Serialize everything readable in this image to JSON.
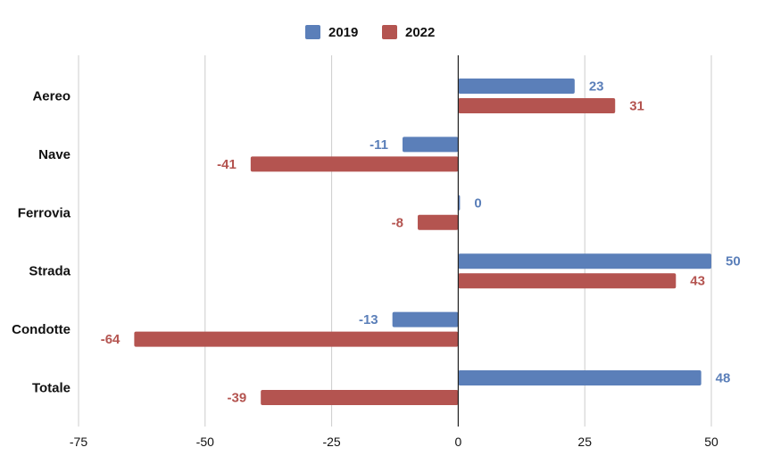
{
  "chart_data": {
    "type": "bar",
    "orientation": "horizontal",
    "categories": [
      "Aereo",
      "Nave",
      "Ferrovia",
      "Strada",
      "Condotte",
      "Totale"
    ],
    "series": [
      {
        "name": "2019",
        "values": [
          23,
          -11,
          0,
          50,
          -13,
          48
        ],
        "color": "#5b7fb9"
      },
      {
        "name": "2022",
        "values": [
          31,
          -41,
          -8,
          43,
          -64,
          -39
        ],
        "color": "#b45450"
      }
    ],
    "xlim": [
      -75,
      50
    ],
    "xticks": [
      -75,
      -50,
      -25,
      0,
      25,
      50
    ],
    "tick_labels": [
      "-75",
      "-50",
      "-25",
      "0",
      "25",
      "50"
    ],
    "title": "",
    "xlabel": "",
    "ylabel": "",
    "legend_position": "top-center",
    "grid": "vertical"
  }
}
